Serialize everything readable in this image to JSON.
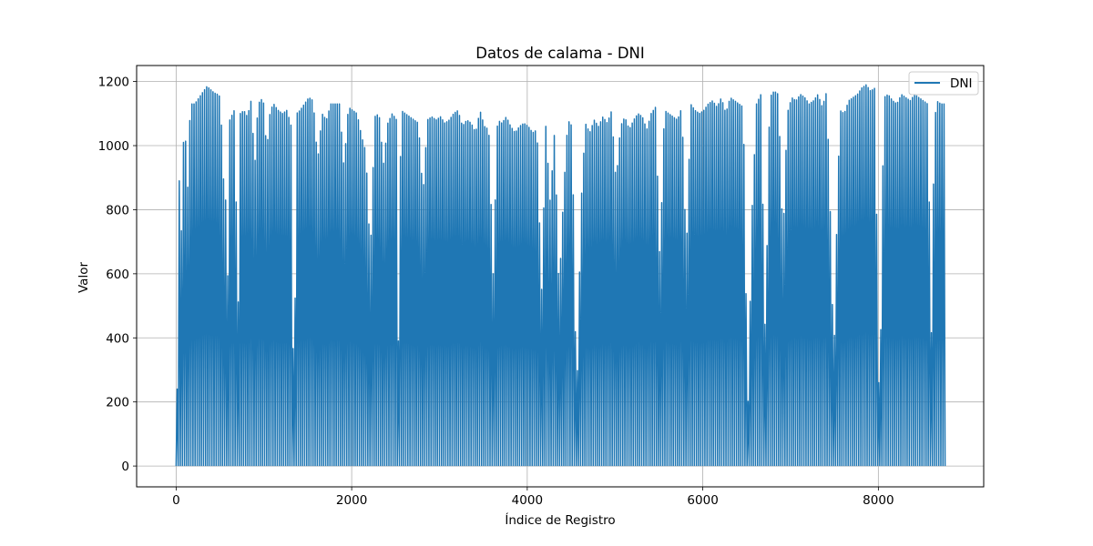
{
  "chart_data": {
    "type": "line",
    "title": "Datos de calama - DNI",
    "xlabel": "Índice de Registro",
    "ylabel": "Valor",
    "xlim": [
      -450,
      9200
    ],
    "ylim": [
      -65,
      1250
    ],
    "xticks": [
      0,
      2000,
      4000,
      6000,
      8000
    ],
    "xtick_labels": [
      "0",
      "2000",
      "4000",
      "6000",
      "8000"
    ],
    "yticks": [
      0,
      200,
      400,
      600,
      800,
      1000,
      1200
    ],
    "ytick_labels": [
      "0",
      "200",
      "400",
      "600",
      "800",
      "1000",
      "1200"
    ],
    "grid": true,
    "legend_position": "upper right",
    "series": [
      {
        "name": "DNI",
        "color": "#1f77b4",
        "x_range": [
          0,
          8759
        ],
        "daily_peak_envelope": [
          [
            0,
            240
          ],
          [
            10,
            1100
          ],
          [
            40,
            650
          ],
          [
            60,
            860
          ],
          [
            80,
            1110
          ],
          [
            120,
            870
          ],
          [
            150,
            1130
          ],
          [
            200,
            1130
          ],
          [
            250,
            1150
          ],
          [
            300,
            1170
          ],
          [
            340,
            1185
          ],
          [
            380,
            1175
          ],
          [
            420,
            1165
          ],
          [
            460,
            1160
          ],
          [
            500,
            1150
          ],
          [
            520,
            720
          ],
          [
            540,
            1160
          ],
          [
            560,
            610
          ],
          [
            580,
            590
          ],
          [
            600,
            1080
          ],
          [
            650,
            1110
          ],
          [
            700,
            460
          ],
          [
            720,
            1100
          ],
          [
            760,
            1110
          ],
          [
            800,
            1090
          ],
          [
            850,
            1150
          ],
          [
            880,
            910
          ],
          [
            920,
            1130
          ],
          [
            980,
            1150
          ],
          [
            1020,
            980
          ],
          [
            1060,
            1110
          ],
          [
            1100,
            1130
          ],
          [
            1150,
            1110
          ],
          [
            1200,
            1100
          ],
          [
            1250,
            1110
          ],
          [
            1300,
            1060
          ],
          [
            1330,
            20
          ],
          [
            1360,
            1100
          ],
          [
            1400,
            1110
          ],
          [
            1450,
            1130
          ],
          [
            1500,
            1150
          ],
          [
            1550,
            1140
          ],
          [
            1600,
            950
          ],
          [
            1650,
            1100
          ],
          [
            1700,
            1080
          ],
          [
            1750,
            1130
          ],
          [
            1800,
            1130
          ],
          [
            1850,
            1130
          ],
          [
            1900,
            930
          ],
          [
            1950,
            1120
          ],
          [
            2000,
            1110
          ],
          [
            2050,
            1100
          ],
          [
            2100,
            1030
          ],
          [
            2150,
            980
          ],
          [
            2200,
            650
          ],
          [
            2250,
            1090
          ],
          [
            2300,
            1100
          ],
          [
            2350,
            940
          ],
          [
            2400,
            1070
          ],
          [
            2450,
            1100
          ],
          [
            2500,
            1080
          ],
          [
            2520,
            390
          ],
          [
            2550,
            1110
          ],
          [
            2600,
            1100
          ],
          [
            2650,
            1090
          ],
          [
            2700,
            1080
          ],
          [
            2750,
            1070
          ],
          [
            2800,
            840
          ],
          [
            2850,
            1080
          ],
          [
            2900,
            1090
          ],
          [
            2950,
            1080
          ],
          [
            3000,
            1090
          ],
          [
            3050,
            1070
          ],
          [
            3100,
            1080
          ],
          [
            3150,
            1100
          ],
          [
            3200,
            1110
          ],
          [
            3250,
            1060
          ],
          [
            3300,
            1080
          ],
          [
            3350,
            1070
          ],
          [
            3400,
            1040
          ],
          [
            3450,
            1110
          ],
          [
            3500,
            1060
          ],
          [
            3550,
            1050
          ],
          [
            3600,
            600
          ],
          [
            3650,
            1080
          ],
          [
            3700,
            1070
          ],
          [
            3750,
            1090
          ],
          [
            3800,
            1060
          ],
          [
            3850,
            1040
          ],
          [
            3900,
            1060
          ],
          [
            3950,
            1070
          ],
          [
            4000,
            1060
          ],
          [
            4050,
            1040
          ],
          [
            4100,
            1050
          ],
          [
            4150,
            530
          ],
          [
            4200,
            1060
          ],
          [
            4250,
            820
          ],
          [
            4300,
            1050
          ],
          [
            4350,
            540
          ],
          [
            4400,
            840
          ],
          [
            4450,
            1080
          ],
          [
            4500,
            1060
          ],
          [
            4550,
            170
          ],
          [
            4600,
            810
          ],
          [
            4650,
            1070
          ],
          [
            4700,
            1040
          ],
          [
            4750,
            1080
          ],
          [
            4800,
            1060
          ],
          [
            4850,
            1090
          ],
          [
            4900,
            1070
          ],
          [
            4950,
            1110
          ],
          [
            5000,
            880
          ],
          [
            5050,
            1060
          ],
          [
            5100,
            1090
          ],
          [
            5150,
            1050
          ],
          [
            5200,
            1080
          ],
          [
            5250,
            1100
          ],
          [
            5300,
            1090
          ],
          [
            5350,
            1050
          ],
          [
            5400,
            1100
          ],
          [
            5450,
            1120
          ],
          [
            5500,
            630
          ],
          [
            5550,
            1110
          ],
          [
            5600,
            1100
          ],
          [
            5650,
            1090
          ],
          [
            5700,
            1080
          ],
          [
            5750,
            1120
          ],
          [
            5800,
            650
          ],
          [
            5850,
            1130
          ],
          [
            5900,
            1110
          ],
          [
            5950,
            1100
          ],
          [
            6000,
            1110
          ],
          [
            6050,
            1130
          ],
          [
            6100,
            1140
          ],
          [
            6150,
            1120
          ],
          [
            6200,
            1150
          ],
          [
            6250,
            1100
          ],
          [
            6300,
            1150
          ],
          [
            6350,
            1140
          ],
          [
            6400,
            1130
          ],
          [
            6450,
            1120
          ],
          [
            6500,
            150
          ],
          [
            6550,
            800
          ],
          [
            6600,
            1130
          ],
          [
            6650,
            1160
          ],
          [
            6700,
            380
          ],
          [
            6750,
            1150
          ],
          [
            6800,
            1170
          ],
          [
            6850,
            1160
          ],
          [
            6900,
            690
          ],
          [
            6950,
            1100
          ],
          [
            7000,
            1150
          ],
          [
            7050,
            1140
          ],
          [
            7100,
            1160
          ],
          [
            7150,
            1150
          ],
          [
            7200,
            1130
          ],
          [
            7250,
            1140
          ],
          [
            7300,
            1160
          ],
          [
            7350,
            1120
          ],
          [
            7400,
            1170
          ],
          [
            7450,
            700
          ],
          [
            7480,
            280
          ],
          [
            7500,
            600
          ],
          [
            7550,
            1110
          ],
          [
            7600,
            1100
          ],
          [
            7650,
            1140
          ],
          [
            7700,
            1150
          ],
          [
            7750,
            1160
          ],
          [
            7800,
            1180
          ],
          [
            7850,
            1190
          ],
          [
            7900,
            1170
          ],
          [
            7950,
            1180
          ],
          [
            8000,
            85
          ],
          [
            8050,
            1150
          ],
          [
            8100,
            1160
          ],
          [
            8150,
            1140
          ],
          [
            8200,
            1130
          ],
          [
            8250,
            1160
          ],
          [
            8300,
            1150
          ],
          [
            8350,
            1140
          ],
          [
            8400,
            1160
          ],
          [
            8450,
            1150
          ],
          [
            8500,
            1140
          ],
          [
            8550,
            1130
          ],
          [
            8600,
            280
          ],
          [
            8620,
            1030
          ],
          [
            8650,
            1140
          ],
          [
            8700,
            1130
          ],
          [
            8759,
            1130
          ]
        ],
        "min_value": 0
      }
    ]
  }
}
